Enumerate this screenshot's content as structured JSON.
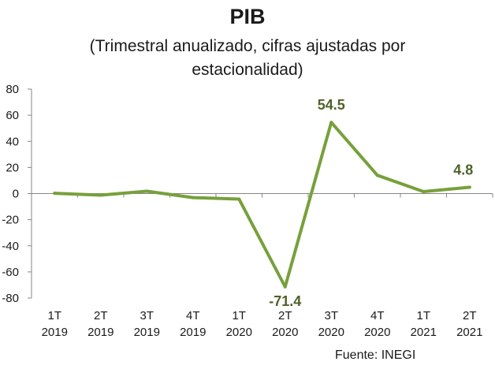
{
  "chart_data": {
    "type": "line",
    "title": "PIB",
    "subtitle": [
      "(Trimestral anualizado, cifras ajustadas por",
      "estacionalidad)"
    ],
    "source": "Fuente: INEGI",
    "categories": [
      [
        "1T",
        "2019"
      ],
      [
        "2T",
        "2019"
      ],
      [
        "3T",
        "2019"
      ],
      [
        "4T",
        "2019"
      ],
      [
        "1T",
        "2020"
      ],
      [
        "2T",
        "2020"
      ],
      [
        "3T",
        "2020"
      ],
      [
        "4T",
        "2020"
      ],
      [
        "1T",
        "2021"
      ],
      [
        "2T",
        "2021"
      ]
    ],
    "series": [
      {
        "values": [
          0.2,
          -1.2,
          1.8,
          -3.1,
          -4.2,
          -71.4,
          54.5,
          14.0,
          1.5,
          4.8
        ]
      }
    ],
    "data_labels": [
      {
        "index": 5,
        "text": "-71.4"
      },
      {
        "index": 6,
        "text": "54.5"
      },
      {
        "index": 9,
        "text": "4.8"
      }
    ],
    "ylim": [
      -80,
      80
    ],
    "yticks": [
      "80",
      "60",
      "40",
      "20",
      "0",
      "-20",
      "-40",
      "-60",
      "-80"
    ],
    "grid": false,
    "line_color": "#77a03b",
    "label_color": "#4f6228"
  }
}
